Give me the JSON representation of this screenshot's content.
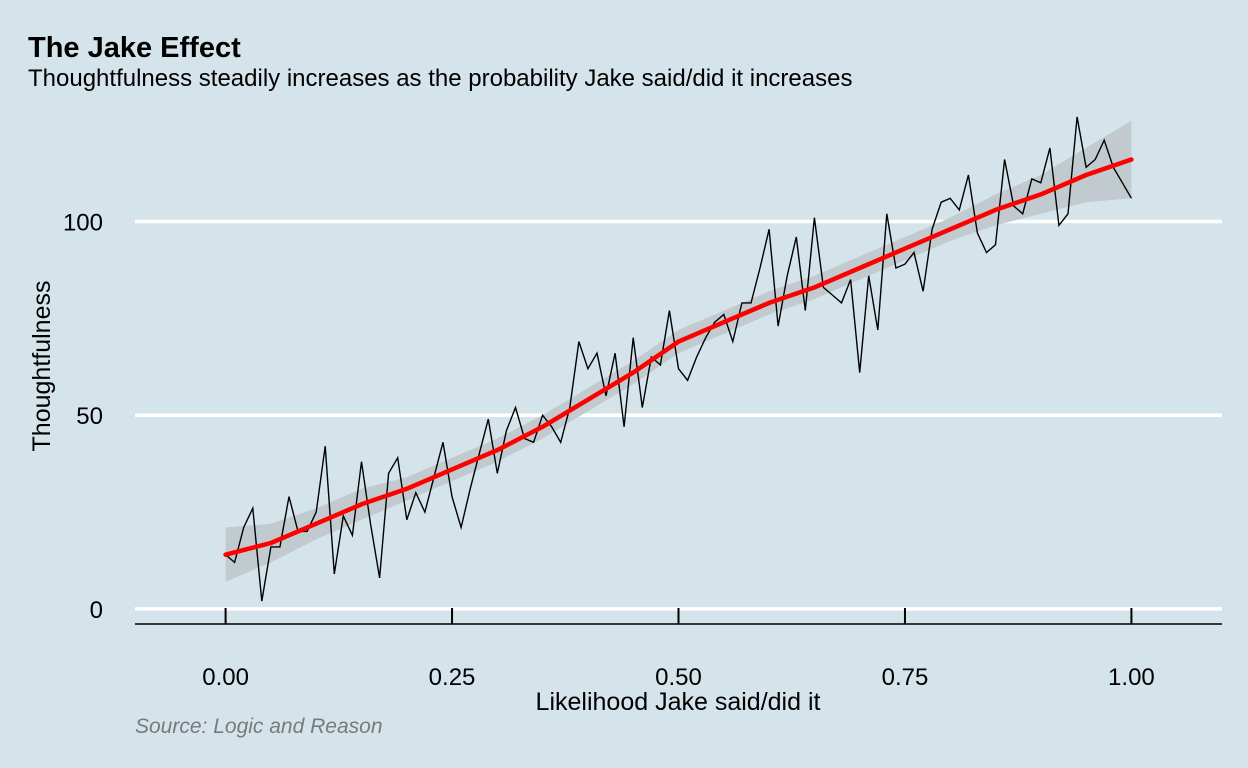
{
  "chart_data": {
    "type": "line",
    "title": "The Jake Effect",
    "subtitle": "Thoughtfulness steadily increases as the probability Jake said/did it increases",
    "xlabel": "Likelihood Jake said/did it",
    "ylabel": "Thoughtfulness",
    "caption": "Source: Logic and Reason",
    "xlim": [
      -0.1,
      1.1
    ],
    "ylim": [
      -3.9,
      127.5
    ],
    "x_ticks": [
      0,
      0.25,
      0.5,
      0.75,
      1
    ],
    "x_tick_labels": [
      "0.00",
      "0.25",
      "0.50",
      "0.75",
      "1.00"
    ],
    "y_ticks": [
      0,
      50,
      100
    ],
    "y_tick_labels": [
      "0",
      "50",
      "100"
    ],
    "grid": "horizontal major only",
    "colors": {
      "background": "#d5e4eb",
      "line": "#000000",
      "smooth": "#ff0000",
      "band": "#bfc6cc",
      "grid": "#ffffff"
    },
    "series": [
      {
        "role": "observed",
        "x": [
          0.0,
          0.01,
          0.02,
          0.03,
          0.04,
          0.05,
          0.06,
          0.07,
          0.08,
          0.09,
          0.1,
          0.11,
          0.12,
          0.13,
          0.14,
          0.15,
          0.16,
          0.17,
          0.18,
          0.19,
          0.2,
          0.21,
          0.22,
          0.23,
          0.24,
          0.25,
          0.26,
          0.27,
          0.28,
          0.29,
          0.3,
          0.31,
          0.32,
          0.33,
          0.34,
          0.35,
          0.36,
          0.37,
          0.38,
          0.39,
          0.4,
          0.41,
          0.42,
          0.43,
          0.44,
          0.45,
          0.46,
          0.47,
          0.48,
          0.49,
          0.5,
          0.51,
          0.52,
          0.53,
          0.54,
          0.55,
          0.56,
          0.57,
          0.58,
          0.59,
          0.6,
          0.61,
          0.62,
          0.63,
          0.64,
          0.65,
          0.66,
          0.67,
          0.68,
          0.69,
          0.7,
          0.71,
          0.72,
          0.73,
          0.74,
          0.75,
          0.76,
          0.77,
          0.78,
          0.79,
          0.8,
          0.81,
          0.82,
          0.83,
          0.84,
          0.85,
          0.86,
          0.87,
          0.88,
          0.89,
          0.9,
          0.91,
          0.92,
          0.93,
          0.94,
          0.95,
          0.96,
          0.97,
          0.98,
          0.99,
          1.0
        ],
        "y": [
          14,
          12,
          21,
          26,
          2,
          16,
          16,
          29,
          20,
          20,
          25,
          42,
          9,
          24,
          19,
          38,
          22,
          8,
          35,
          39,
          23,
          30,
          25,
          34,
          43,
          29,
          21,
          31,
          40,
          49,
          35,
          46,
          52,
          44,
          43,
          50,
          47,
          43,
          52,
          69,
          62,
          66,
          55,
          66,
          47,
          70,
          52,
          65,
          63,
          77,
          62,
          59,
          65,
          70,
          74,
          76,
          69,
          79,
          79,
          88,
          98,
          73,
          86,
          96,
          77,
          101,
          83,
          81,
          79,
          85,
          61,
          86,
          72,
          102,
          88,
          89,
          92,
          82,
          98,
          105,
          106,
          103,
          112,
          97,
          92,
          94,
          116,
          104,
          102,
          111,
          110,
          119,
          99,
          102,
          127,
          114,
          116,
          121,
          114,
          110,
          106
        ]
      },
      {
        "role": "smooth",
        "x": [
          0,
          0.05,
          0.1,
          0.15,
          0.2,
          0.25,
          0.3,
          0.35,
          0.4,
          0.45,
          0.5,
          0.55,
          0.6,
          0.65,
          0.7,
          0.75,
          0.8,
          0.85,
          0.9,
          0.95,
          1.0
        ],
        "y": [
          14,
          17,
          22,
          27,
          31,
          36,
          41,
          47,
          54,
          61,
          69,
          74,
          79,
          83,
          88,
          93,
          98,
          103,
          107,
          112,
          116
        ],
        "lower": [
          7,
          12,
          18,
          23,
          28,
          33,
          38,
          44,
          51,
          58,
          66,
          71,
          76,
          80,
          85,
          90,
          95,
          99,
          102,
          105,
          106
        ],
        "upper": [
          21,
          22,
          26,
          31,
          34,
          39,
          44,
          50,
          57,
          64,
          72,
          77,
          82,
          86,
          91,
          96,
          101,
          107,
          112,
          119,
          126
        ]
      }
    ]
  }
}
